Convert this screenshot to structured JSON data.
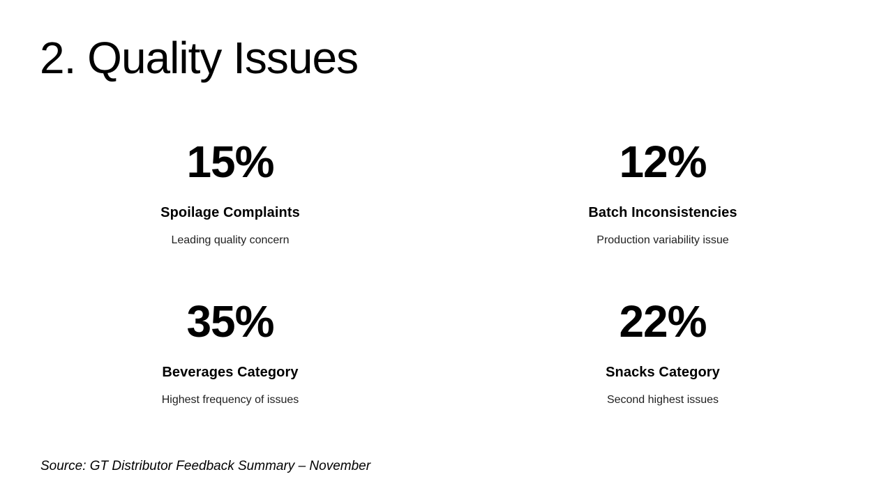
{
  "slide": {
    "title": "2. Quality Issues",
    "stats": [
      {
        "value": "15%",
        "label": "Spoilage Complaints",
        "desc": "Leading quality concern"
      },
      {
        "value": "12%",
        "label": "Batch Inconsistencies",
        "desc": "Production variability issue"
      },
      {
        "value": "35%",
        "label": "Beverages Category",
        "desc": "Highest frequency of issues"
      },
      {
        "value": "22%",
        "label": "Snacks Category",
        "desc": "Second highest issues"
      }
    ],
    "source": "Source: GT Distributor Feedback Summary – November",
    "colors": {
      "background": "#ffffff",
      "text": "#000000",
      "desc_text": "#1f1f1f"
    }
  }
}
